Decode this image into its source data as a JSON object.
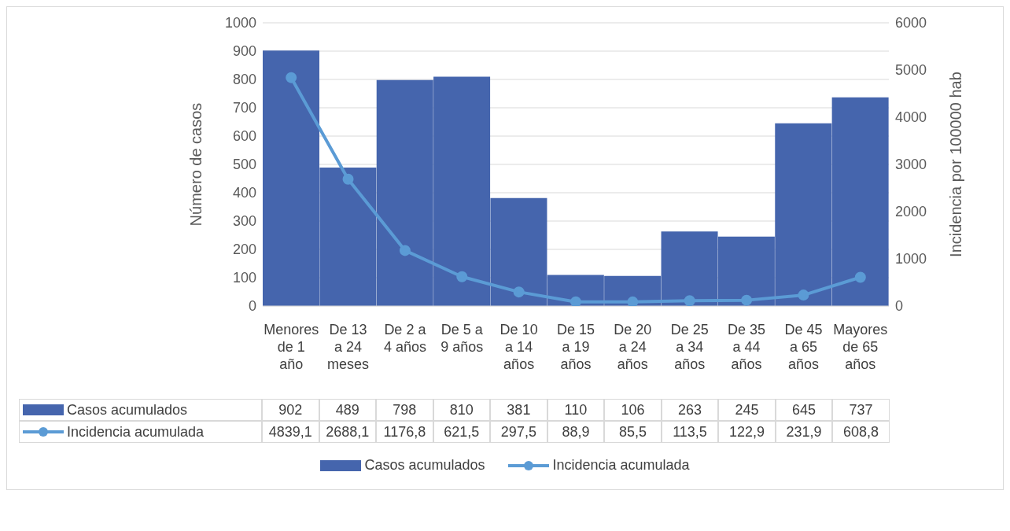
{
  "chart_data": {
    "type": "bar",
    "ylabel": "Número de casos",
    "y2label": "Incidencia por 100000 hab",
    "categories": [
      "Menores de 1 año",
      "De 13 a 24 meses",
      "De 2 a 4 años",
      "De 5 a 9 años",
      "De 10 a 14 años",
      "De 15 a 19 años",
      "De 20 a 24 años",
      "De 25 a 34 años",
      "De 35 a 44 años",
      "De 45 a 65 años",
      "Mayores de 65 años"
    ],
    "series": [
      {
        "name": "Casos acumulados",
        "color": "#4565ad",
        "values": [
          902,
          489,
          798,
          810,
          381,
          110,
          106,
          263,
          245,
          645,
          737
        ],
        "value_labels": [
          "902",
          "489",
          "798",
          "810",
          "381",
          "110",
          "106",
          "263",
          "245",
          "645",
          "737"
        ]
      },
      {
        "name": "Incidencia acumulada",
        "type": "line",
        "axis": "y2",
        "color": "#5b9bd5",
        "marker": "circle",
        "values": [
          4839.1,
          2688.1,
          1176.8,
          621.5,
          297.5,
          88.9,
          85.5,
          113.5,
          122.9,
          231.9,
          608.8
        ],
        "value_labels": [
          "4839,1",
          "2688,1",
          "1176,8",
          "621,5",
          "297,5",
          "88,9",
          "85,5",
          "113,5",
          "122,9",
          "231,9",
          "608,8"
        ]
      }
    ],
    "ylim": [
      0,
      1000
    ],
    "yticks": [
      0,
      100,
      200,
      300,
      400,
      500,
      600,
      700,
      800,
      900,
      1000
    ],
    "y2lim": [
      0,
      6000
    ],
    "y2ticks": [
      0,
      1000,
      2000,
      3000,
      4000,
      5000,
      6000
    ],
    "grid": "y",
    "legend": "bottom"
  }
}
